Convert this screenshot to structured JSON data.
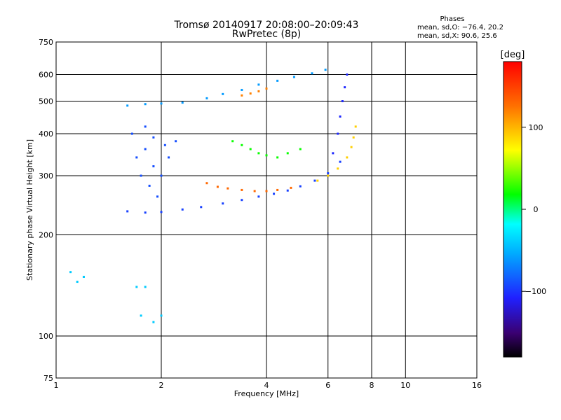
{
  "header": {
    "title_line1": "Tromsø 20140917 20:08:00–20:09:43",
    "title_line2": "RwPretec (8p)"
  },
  "stats": {
    "heading": "Phases",
    "line_o": "mean, sd,O: −76.4, 20.2",
    "line_x": "mean, sd,X:  90.6, 25.6"
  },
  "colorbar": {
    "unit_label": "[deg]",
    "ticks": [
      {
        "value": 100,
        "label": "100"
      },
      {
        "value": 0,
        "label": "0"
      },
      {
        "value": -100,
        "label": "−100"
      }
    ],
    "range": [
      -180,
      180
    ]
  },
  "chart_data": {
    "type": "scatter",
    "xlabel": "Frequency [MHz]",
    "ylabel": "Stationary phase Virtual Height [km]",
    "x_scale": "log",
    "y_scale": "log",
    "xlim": [
      1,
      16
    ],
    "ylim": [
      75,
      750
    ],
    "x_ticks": [
      {
        "value": 1,
        "label": "1"
      },
      {
        "value": 2,
        "label": "2"
      },
      {
        "value": 4,
        "label": "4"
      },
      {
        "value": 6,
        "label": "6"
      },
      {
        "value": 8,
        "label": "8"
      },
      {
        "value": 10,
        "label": "10"
      },
      {
        "value": 16,
        "label": "16"
      }
    ],
    "x_gridlines": [
      2,
      4,
      6,
      8,
      10
    ],
    "y_ticks": [
      {
        "value": 75,
        "label": "75"
      },
      {
        "value": 100,
        "label": "100"
      },
      {
        "value": 200,
        "label": "200"
      },
      {
        "value": 300,
        "label": "300"
      },
      {
        "value": 400,
        "label": "400"
      },
      {
        "value": 500,
        "label": "500"
      },
      {
        "value": 600,
        "label": "600"
      },
      {
        "value": 750,
        "label": "750"
      }
    ],
    "y_gridlines": [
      100,
      200,
      300,
      400,
      500,
      600
    ],
    "point_series": [
      {
        "name": "F-region trace (blue)",
        "phase": -95,
        "points": [
          [
            1.6,
            235
          ],
          [
            1.8,
            233
          ],
          [
            2.0,
            234
          ],
          [
            2.3,
            238
          ],
          [
            2.6,
            242
          ],
          [
            3.0,
            248
          ],
          [
            3.4,
            254
          ],
          [
            3.8,
            260
          ],
          [
            4.2,
            265
          ],
          [
            4.6,
            271
          ],
          [
            5.0,
            279
          ],
          [
            5.5,
            290
          ],
          [
            6.0,
            305
          ],
          [
            6.5,
            330
          ]
        ]
      },
      {
        "name": "F-region trace (orange)",
        "phase": 130,
        "points": [
          [
            2.7,
            285
          ],
          [
            2.9,
            278
          ],
          [
            3.1,
            275
          ],
          [
            3.4,
            272
          ],
          [
            3.7,
            270
          ],
          [
            4.0,
            270
          ],
          [
            4.3,
            272
          ],
          [
            4.7,
            276
          ]
        ]
      },
      {
        "name": "F-region trace (yellow)",
        "phase": 90,
        "points": [
          [
            5.6,
            290
          ],
          [
            6.0,
            300
          ],
          [
            6.4,
            315
          ],
          [
            6.8,
            340
          ],
          [
            7.0,
            365
          ],
          [
            7.1,
            390
          ],
          [
            7.2,
            420
          ]
        ]
      },
      {
        "name": "Upper trace",
        "phase": -60,
        "points": [
          [
            1.6,
            485
          ],
          [
            1.8,
            490
          ],
          [
            2.0,
            492
          ],
          [
            2.3,
            495
          ],
          [
            2.7,
            510
          ],
          [
            3.0,
            525
          ],
          [
            3.4,
            540
          ],
          [
            3.8,
            560
          ],
          [
            4.3,
            575
          ],
          [
            4.8,
            590
          ],
          [
            5.4,
            605
          ],
          [
            5.9,
            620
          ]
        ]
      },
      {
        "name": "Upper trace (orange)",
        "phase": 120,
        "points": [
          [
            3.4,
            520
          ],
          [
            3.6,
            527
          ],
          [
            3.8,
            535
          ],
          [
            4.0,
            545
          ]
        ]
      },
      {
        "name": "Diffuse cluster",
        "phase": -90,
        "points": [
          [
            1.7,
            340
          ],
          [
            1.8,
            360
          ],
          [
            1.9,
            320
          ],
          [
            2.0,
            300
          ],
          [
            2.1,
            340
          ],
          [
            2.2,
            380
          ],
          [
            1.75,
            300
          ],
          [
            1.85,
            280
          ],
          [
            1.95,
            260
          ],
          [
            2.05,
            370
          ],
          [
            1.65,
            400
          ],
          [
            1.8,
            420
          ],
          [
            1.9,
            390
          ]
        ]
      },
      {
        "name": "Mid-phase cluster",
        "phase": 20,
        "points": [
          [
            3.2,
            380
          ],
          [
            3.4,
            370
          ],
          [
            3.6,
            360
          ],
          [
            3.8,
            350
          ],
          [
            4.0,
            345
          ],
          [
            4.3,
            340
          ],
          [
            4.6,
            350
          ],
          [
            5.0,
            360
          ]
        ]
      },
      {
        "name": "Steep trace",
        "phase": -105,
        "points": [
          [
            6.2,
            350
          ],
          [
            6.4,
            400
          ],
          [
            6.5,
            450
          ],
          [
            6.6,
            500
          ],
          [
            6.7,
            550
          ],
          [
            6.8,
            600
          ]
        ]
      },
      {
        "name": "Low echoes",
        "phase": -40,
        "points": [
          [
            1.1,
            155
          ],
          [
            1.15,
            145
          ],
          [
            1.2,
            150
          ],
          [
            1.7,
            140
          ],
          [
            1.8,
            140
          ],
          [
            1.75,
            115
          ],
          [
            1.9,
            110
          ],
          [
            2.0,
            115
          ]
        ]
      }
    ]
  }
}
